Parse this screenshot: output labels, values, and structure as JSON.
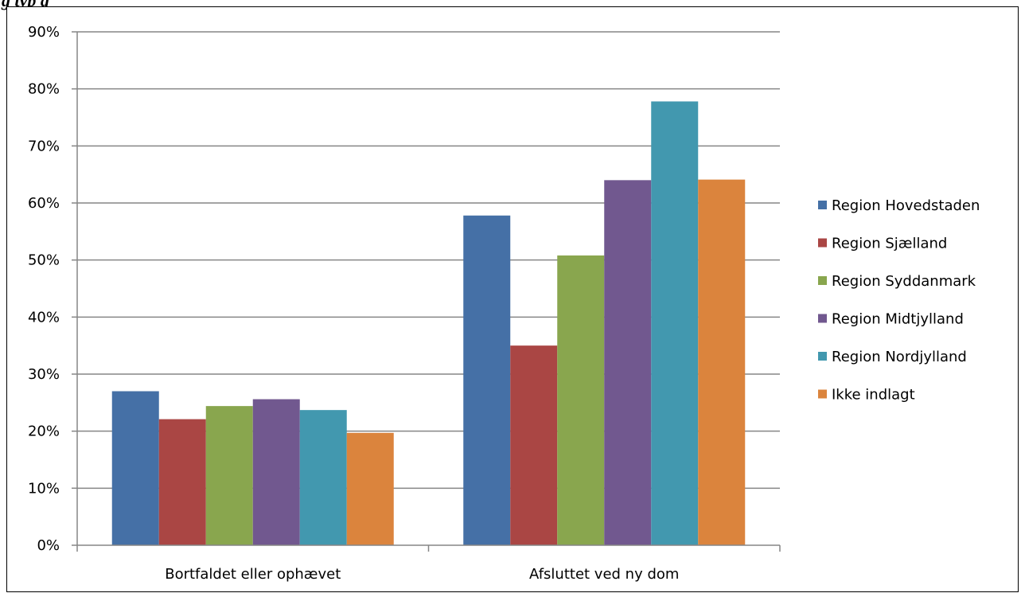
{
  "caption": "g typ                 g",
  "chart_data": {
    "type": "bar",
    "categories": [
      "Bortfaldet eller ophævet",
      "Afsluttet ved ny dom"
    ],
    "series": [
      {
        "name": "Region Hovedstaden",
        "color": "#4570a6",
        "values": [
          0.27,
          0.578
        ]
      },
      {
        "name": "Region Sjælland",
        "color": "#aa4644",
        "values": [
          0.221,
          0.35
        ]
      },
      {
        "name": "Region Syddanmark",
        "color": "#89a64e",
        "values": [
          0.244,
          0.508
        ]
      },
      {
        "name": "Region Midtjylland",
        "color": "#71588f",
        "values": [
          0.256,
          0.64
        ]
      },
      {
        "name": "Region Nordjylland",
        "color": "#4298af",
        "values": [
          0.237,
          0.778
        ]
      },
      {
        "name": "Ikke indlagt",
        "color": "#db843d",
        "values": [
          0.197,
          0.641
        ]
      }
    ],
    "ylim": [
      0,
      0.9
    ],
    "yticks": [
      0,
      0.1,
      0.2,
      0.3,
      0.4,
      0.5,
      0.6,
      0.7,
      0.8,
      0.9
    ],
    "ytick_labels": [
      "0%",
      "10%",
      "20%",
      "30%",
      "40%",
      "50%",
      "60%",
      "70%",
      "80%",
      "90%"
    ],
    "grid": true,
    "legend_position": "right",
    "title": "",
    "xlabel": "",
    "ylabel": ""
  }
}
